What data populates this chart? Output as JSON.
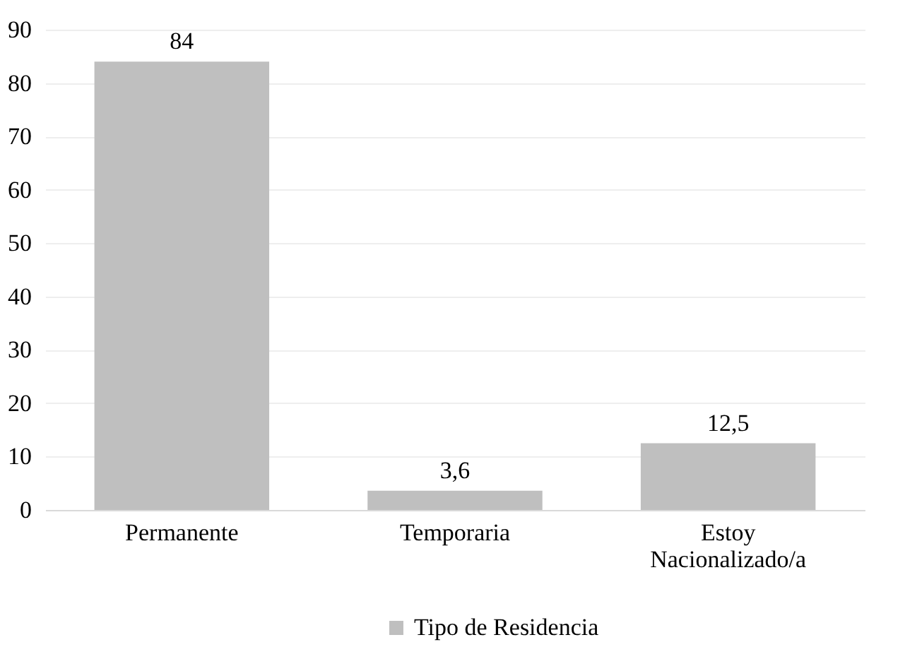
{
  "chart_data": {
    "type": "bar",
    "categories": [
      "Permanente",
      "Temporaria",
      "Estoy Nacionalizado/a"
    ],
    "series": [
      {
        "name": "Tipo de Residencia",
        "color": "#bfbfbf",
        "values": [
          84,
          3.6,
          12.5
        ],
        "value_labels": [
          "84",
          "3,6",
          "12,5"
        ]
      }
    ],
    "ylim": [
      0,
      90
    ],
    "yticks": [
      0,
      10,
      20,
      30,
      40,
      50,
      60,
      70,
      80,
      90
    ],
    "grid": "y",
    "legend": "bottom"
  }
}
